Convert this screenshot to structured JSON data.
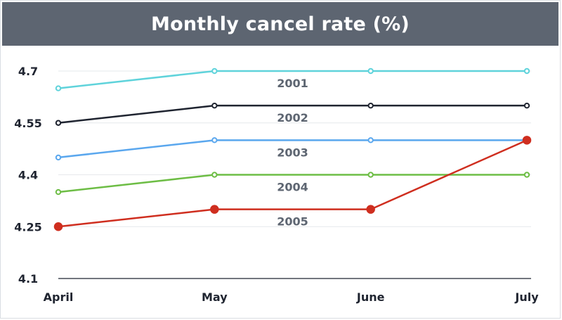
{
  "chart_data": {
    "type": "line",
    "title": "Monthly cancel rate (%)",
    "xlabel": "",
    "ylabel": "",
    "categories": [
      "April",
      "May",
      "June",
      "July"
    ],
    "ylim": [
      4.1,
      4.7
    ],
    "yticks": [
      4.1,
      4.25,
      4.4,
      4.55,
      4.7
    ],
    "ytick_labels": [
      "4.1",
      "4.25",
      "4.4",
      "4.55",
      "4.7"
    ],
    "grid": true,
    "legend": "inline-labels",
    "series": [
      {
        "name": "2001",
        "values": [
          4.65,
          4.7,
          4.7,
          4.7
        ],
        "color": "#5fd3db",
        "highlight": []
      },
      {
        "name": "2002",
        "values": [
          4.55,
          4.6,
          4.6,
          4.6
        ],
        "color": "#1f2430",
        "highlight": []
      },
      {
        "name": "2003",
        "values": [
          4.45,
          4.5,
          4.5,
          4.5
        ],
        "color": "#5aa7ee",
        "highlight": []
      },
      {
        "name": "2004",
        "values": [
          4.35,
          4.4,
          4.4,
          4.4
        ],
        "color": "#6dbd45",
        "highlight": []
      },
      {
        "name": "2005",
        "values": [
          4.25,
          4.3,
          4.3,
          4.5
        ],
        "color": "#cf2e1f",
        "highlight": [
          0,
          1,
          2,
          3
        ]
      }
    ]
  }
}
